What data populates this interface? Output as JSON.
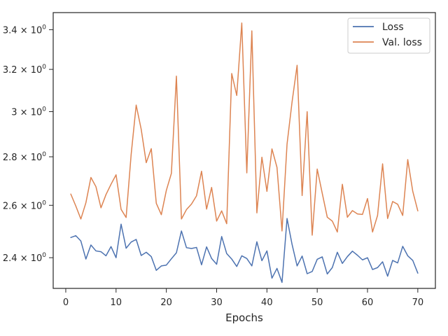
{
  "chart_data": {
    "type": "line",
    "title": "",
    "xlabel": "Epochs",
    "ylabel": "",
    "xlim": [
      -2.5,
      73.5
    ],
    "ylim": [
      2.29,
      3.49
    ],
    "y_scale": "log",
    "grid": false,
    "legend_position": "top-right",
    "x_ticks": [
      0,
      10,
      20,
      30,
      40,
      50,
      60,
      70
    ],
    "y_ticks": [
      {
        "value": 2.4,
        "mantissa": "2.4"
      },
      {
        "value": 2.6,
        "mantissa": "2.6"
      },
      {
        "value": 2.8,
        "mantissa": "2.8"
      },
      {
        "value": 3.0,
        "mantissa": "3"
      },
      {
        "value": 3.2,
        "mantissa": "3.2"
      },
      {
        "value": 3.4,
        "mantissa": "3.4"
      }
    ],
    "y_tick_base": "10",
    "y_tick_exponent": "0",
    "y_tick_times": "×",
    "x": [
      1,
      2,
      3,
      4,
      5,
      6,
      7,
      8,
      9,
      10,
      11,
      12,
      13,
      14,
      15,
      16,
      17,
      18,
      19,
      20,
      21,
      22,
      23,
      24,
      25,
      26,
      27,
      28,
      29,
      30,
      31,
      32,
      33,
      34,
      35,
      36,
      37,
      38,
      39,
      40,
      41,
      42,
      43,
      44,
      45,
      46,
      47,
      48,
      49,
      50,
      51,
      52,
      53,
      54,
      55,
      56,
      57,
      58,
      59,
      60,
      61,
      62,
      63,
      64,
      65,
      66,
      67,
      68,
      69,
      70
    ],
    "series": [
      {
        "name": "Loss",
        "color": "#4c72b0",
        "values": [
          2.475,
          2.482,
          2.462,
          2.395,
          2.447,
          2.425,
          2.422,
          2.407,
          2.441,
          2.4,
          2.526,
          2.435,
          2.458,
          2.468,
          2.408,
          2.42,
          2.404,
          2.354,
          2.37,
          2.373,
          2.396,
          2.418,
          2.5,
          2.437,
          2.434,
          2.438,
          2.374,
          2.44,
          2.397,
          2.376,
          2.479,
          2.415,
          2.395,
          2.368,
          2.407,
          2.397,
          2.37,
          2.459,
          2.389,
          2.425,
          2.326,
          2.361,
          2.311,
          2.548,
          2.449,
          2.37,
          2.406,
          2.342,
          2.35,
          2.394,
          2.403,
          2.341,
          2.364,
          2.42,
          2.379,
          2.404,
          2.424,
          2.409,
          2.392,
          2.4,
          2.357,
          2.364,
          2.385,
          2.333,
          2.39,
          2.381,
          2.442,
          2.407,
          2.39,
          2.344
        ]
      },
      {
        "name": "Val. loss",
        "color": "#dd8452",
        "values": [
          2.645,
          2.597,
          2.546,
          2.61,
          2.713,
          2.675,
          2.59,
          2.643,
          2.685,
          2.724,
          2.584,
          2.552,
          2.81,
          3.03,
          2.92,
          2.775,
          2.835,
          2.608,
          2.563,
          2.66,
          2.73,
          3.167,
          2.546,
          2.583,
          2.605,
          2.638,
          2.739,
          2.585,
          2.672,
          2.538,
          2.578,
          2.528,
          3.18,
          3.075,
          3.435,
          2.732,
          3.394,
          2.57,
          2.798,
          2.656,
          2.834,
          2.755,
          2.5,
          2.855,
          3.045,
          3.22,
          2.639,
          3.0,
          2.484,
          2.748,
          2.648,
          2.553,
          2.538,
          2.496,
          2.685,
          2.553,
          2.579,
          2.566,
          2.564,
          2.627,
          2.496,
          2.56,
          2.77,
          2.548,
          2.615,
          2.604,
          2.56,
          2.788,
          2.656,
          2.578
        ]
      }
    ]
  }
}
